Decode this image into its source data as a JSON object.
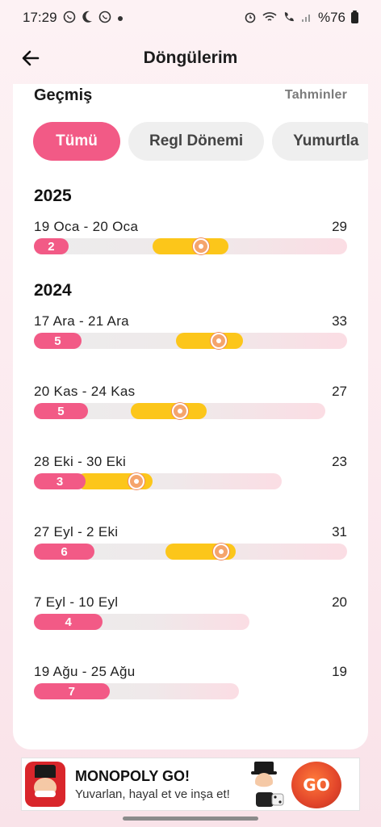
{
  "status_bar": {
    "time": "17:29",
    "battery": "%76",
    "left_icons": [
      "whatsapp-icon",
      "moon-icon",
      "whatsapp-icon",
      "dot-icon"
    ],
    "right_icons": [
      "alarm-icon",
      "wifi-icon",
      "wifi-call-icon",
      "signal-icon",
      "battery-icon"
    ]
  },
  "app_bar": {
    "title": "Döngülerim"
  },
  "history": {
    "label": "Geçmiş",
    "predictions_link": "Tahminler"
  },
  "filters": [
    {
      "label": "Tümü",
      "active": true
    },
    {
      "label": "Regl Dönemi",
      "active": false
    },
    {
      "label": "Yumurtla",
      "active": false
    }
  ],
  "years": [
    {
      "year": "2025",
      "cycles": [
        {
          "dates": "19 Oca - 20 Oca",
          "length": "29",
          "period_days": "2",
          "fertile_start_day": 12,
          "fertile_end_day": 18,
          "ovulation_day": 16
        }
      ]
    },
    {
      "year": "2024",
      "cycles": [
        {
          "dates": "17 Ara - 21 Ara",
          "length": "33",
          "period_days": "5",
          "fertile_start_day": 16,
          "fertile_end_day": 22,
          "ovulation_day": 20
        },
        {
          "dates": "20 Kas - 24 Kas",
          "length": "27",
          "period_days": "5",
          "fertile_start_day": 10,
          "fertile_end_day": 16,
          "ovulation_day": 14
        },
        {
          "dates": "28 Eki - 30 Eki",
          "length": "23",
          "period_days": "3",
          "fertile_start_day": 5,
          "fertile_end_day": 11,
          "ovulation_day": 10
        },
        {
          "dates": "27 Eyl - 2 Eki",
          "length": "31",
          "period_days": "6",
          "fertile_start_day": 14,
          "fertile_end_day": 20,
          "ovulation_day": 19
        },
        {
          "dates": "7 Eyl - 10 Eyl",
          "length": "20",
          "period_days": "4"
        },
        {
          "dates": "19 Ağu - 25 Ağu",
          "length": "19",
          "period_days": "7"
        }
      ]
    }
  ],
  "ad": {
    "title": "MONOPOLY GO!",
    "subtitle": "Yuvarlan, hayal et ve inşa et!",
    "badge": "GO"
  },
  "colors": {
    "accent_pink": "#f25a86",
    "fertile_yellow": "#fcc61a",
    "ovulation_orange": "#f5a46c"
  }
}
